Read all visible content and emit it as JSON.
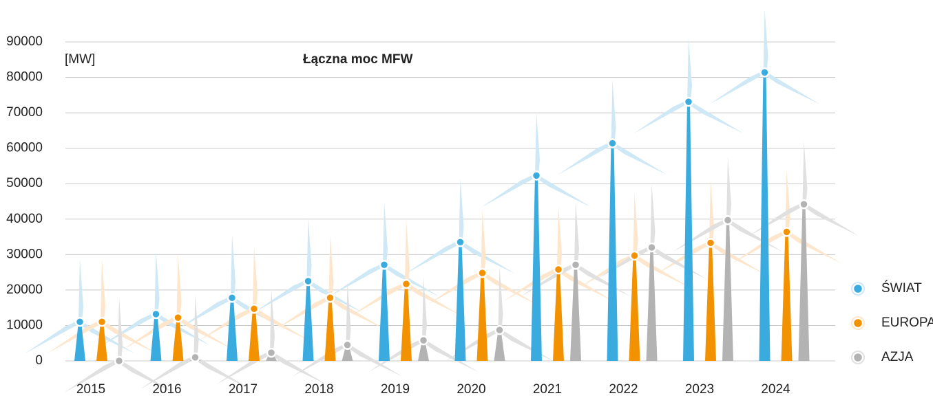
{
  "chart_data": {
    "type": "turbine",
    "title": "Łączna moc MFW",
    "y_label": "[MW]",
    "categories": [
      "2015",
      "2016",
      "2017",
      "2018",
      "2019",
      "2020",
      "2021",
      "2022",
      "2023",
      "2024"
    ],
    "series": [
      {
        "name": "ŚWIAT",
        "color": "#3aabdf",
        "blade_color": "#cfe8f6",
        "values": [
          11000,
          13200,
          17800,
          22500,
          27100,
          33500,
          52300,
          61400,
          73100,
          81400
        ]
      },
      {
        "name": "EUROPA",
        "color": "#f39200",
        "blade_color": "#fde6cc",
        "values": [
          11000,
          12200,
          14700,
          17800,
          21700,
          24800,
          25800,
          29700,
          33300,
          36400
        ]
      },
      {
        "name": "AZJA",
        "color": "#b3b3b3",
        "blade_color": "#e0e0e0",
        "values": [
          0,
          1000,
          2300,
          4500,
          5800,
          8700,
          27100,
          32000,
          39700,
          44200
        ]
      }
    ],
    "ylim": [
      0,
      90000
    ],
    "yticks": [
      0,
      10000,
      20000,
      30000,
      40000,
      50000,
      60000,
      70000,
      80000,
      90000
    ],
    "grid": true,
    "legend": "right"
  }
}
